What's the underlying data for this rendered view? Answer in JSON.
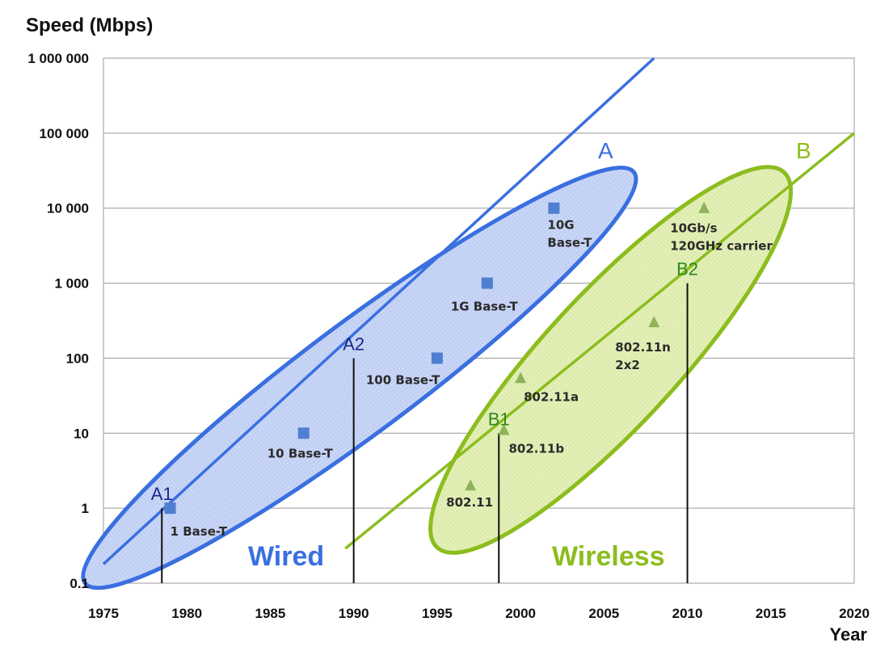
{
  "chart_data": {
    "type": "scatter",
    "ylabel": "Speed (Mbps)",
    "xlabel": "Year",
    "yscale": "log",
    "xlim": [
      1975,
      2020
    ],
    "ylim": [
      0.1,
      1000000
    ],
    "x_ticks": [
      "1975",
      "1980",
      "1985",
      "1990",
      "1995",
      "2000",
      "2005",
      "2010",
      "2015",
      "2020"
    ],
    "y_ticks": [
      {
        "value": 0.1,
        "label": "0.1"
      },
      {
        "value": 1,
        "label": "1"
      },
      {
        "value": 10,
        "label": "10"
      },
      {
        "value": 100,
        "label": "100"
      },
      {
        "value": 1000,
        "label": "1 000"
      },
      {
        "value": 10000,
        "label": "10 000"
      },
      {
        "value": 100000,
        "label": "100 000"
      },
      {
        "value": 1000000,
        "label": "1 000 000"
      }
    ],
    "grid": "horizontal",
    "series": [
      {
        "name": "Wired",
        "color": "#3a6fe0",
        "marker": "square",
        "points": [
          {
            "x": 1979,
            "y": 1,
            "label": "1 Base-T"
          },
          {
            "x": 1987,
            "y": 10,
            "label": "10 Base-T"
          },
          {
            "x": 1995,
            "y": 100,
            "label": "100 Base-T"
          },
          {
            "x": 1998,
            "y": 1000,
            "label": "1G Base-T"
          },
          {
            "x": 2002,
            "y": 10000,
            "label": "10G\nBase-T"
          }
        ],
        "trend_label": "A",
        "trend": [
          {
            "x": 1975,
            "y": 0.18
          },
          {
            "x": 2008,
            "y": 1000000
          }
        ]
      },
      {
        "name": "Wireless",
        "color": "#8cbd1e",
        "marker": "triangle",
        "points": [
          {
            "x": 1997,
            "y": 2,
            "label": "802.11"
          },
          {
            "x": 1999,
            "y": 11,
            "label": "802.11b"
          },
          {
            "x": 2000,
            "y": 54,
            "label": "802.11a"
          },
          {
            "x": 2008,
            "y": 300,
            "label": "802.11n\n2x2"
          },
          {
            "x": 2011,
            "y": 10000,
            "label": "10Gb/s\n120GHz carrier"
          }
        ],
        "trend_label": "B",
        "trend": [
          {
            "x": 1989.5,
            "y": 0.29
          },
          {
            "x": 2020,
            "y": 100000
          }
        ]
      }
    ],
    "markers": [
      {
        "label": "A1",
        "x": 1978.5,
        "y": 1,
        "color": "#1a2a8a"
      },
      {
        "label": "A2",
        "x": 1990,
        "y": 100,
        "color": "#1a2a8a"
      },
      {
        "label": "B1",
        "x": 1998.7,
        "y": 10,
        "color": "#2b8a1a"
      },
      {
        "label": "B2",
        "x": 2010,
        "y": 1000,
        "color": "#2b8a1a"
      }
    ]
  }
}
